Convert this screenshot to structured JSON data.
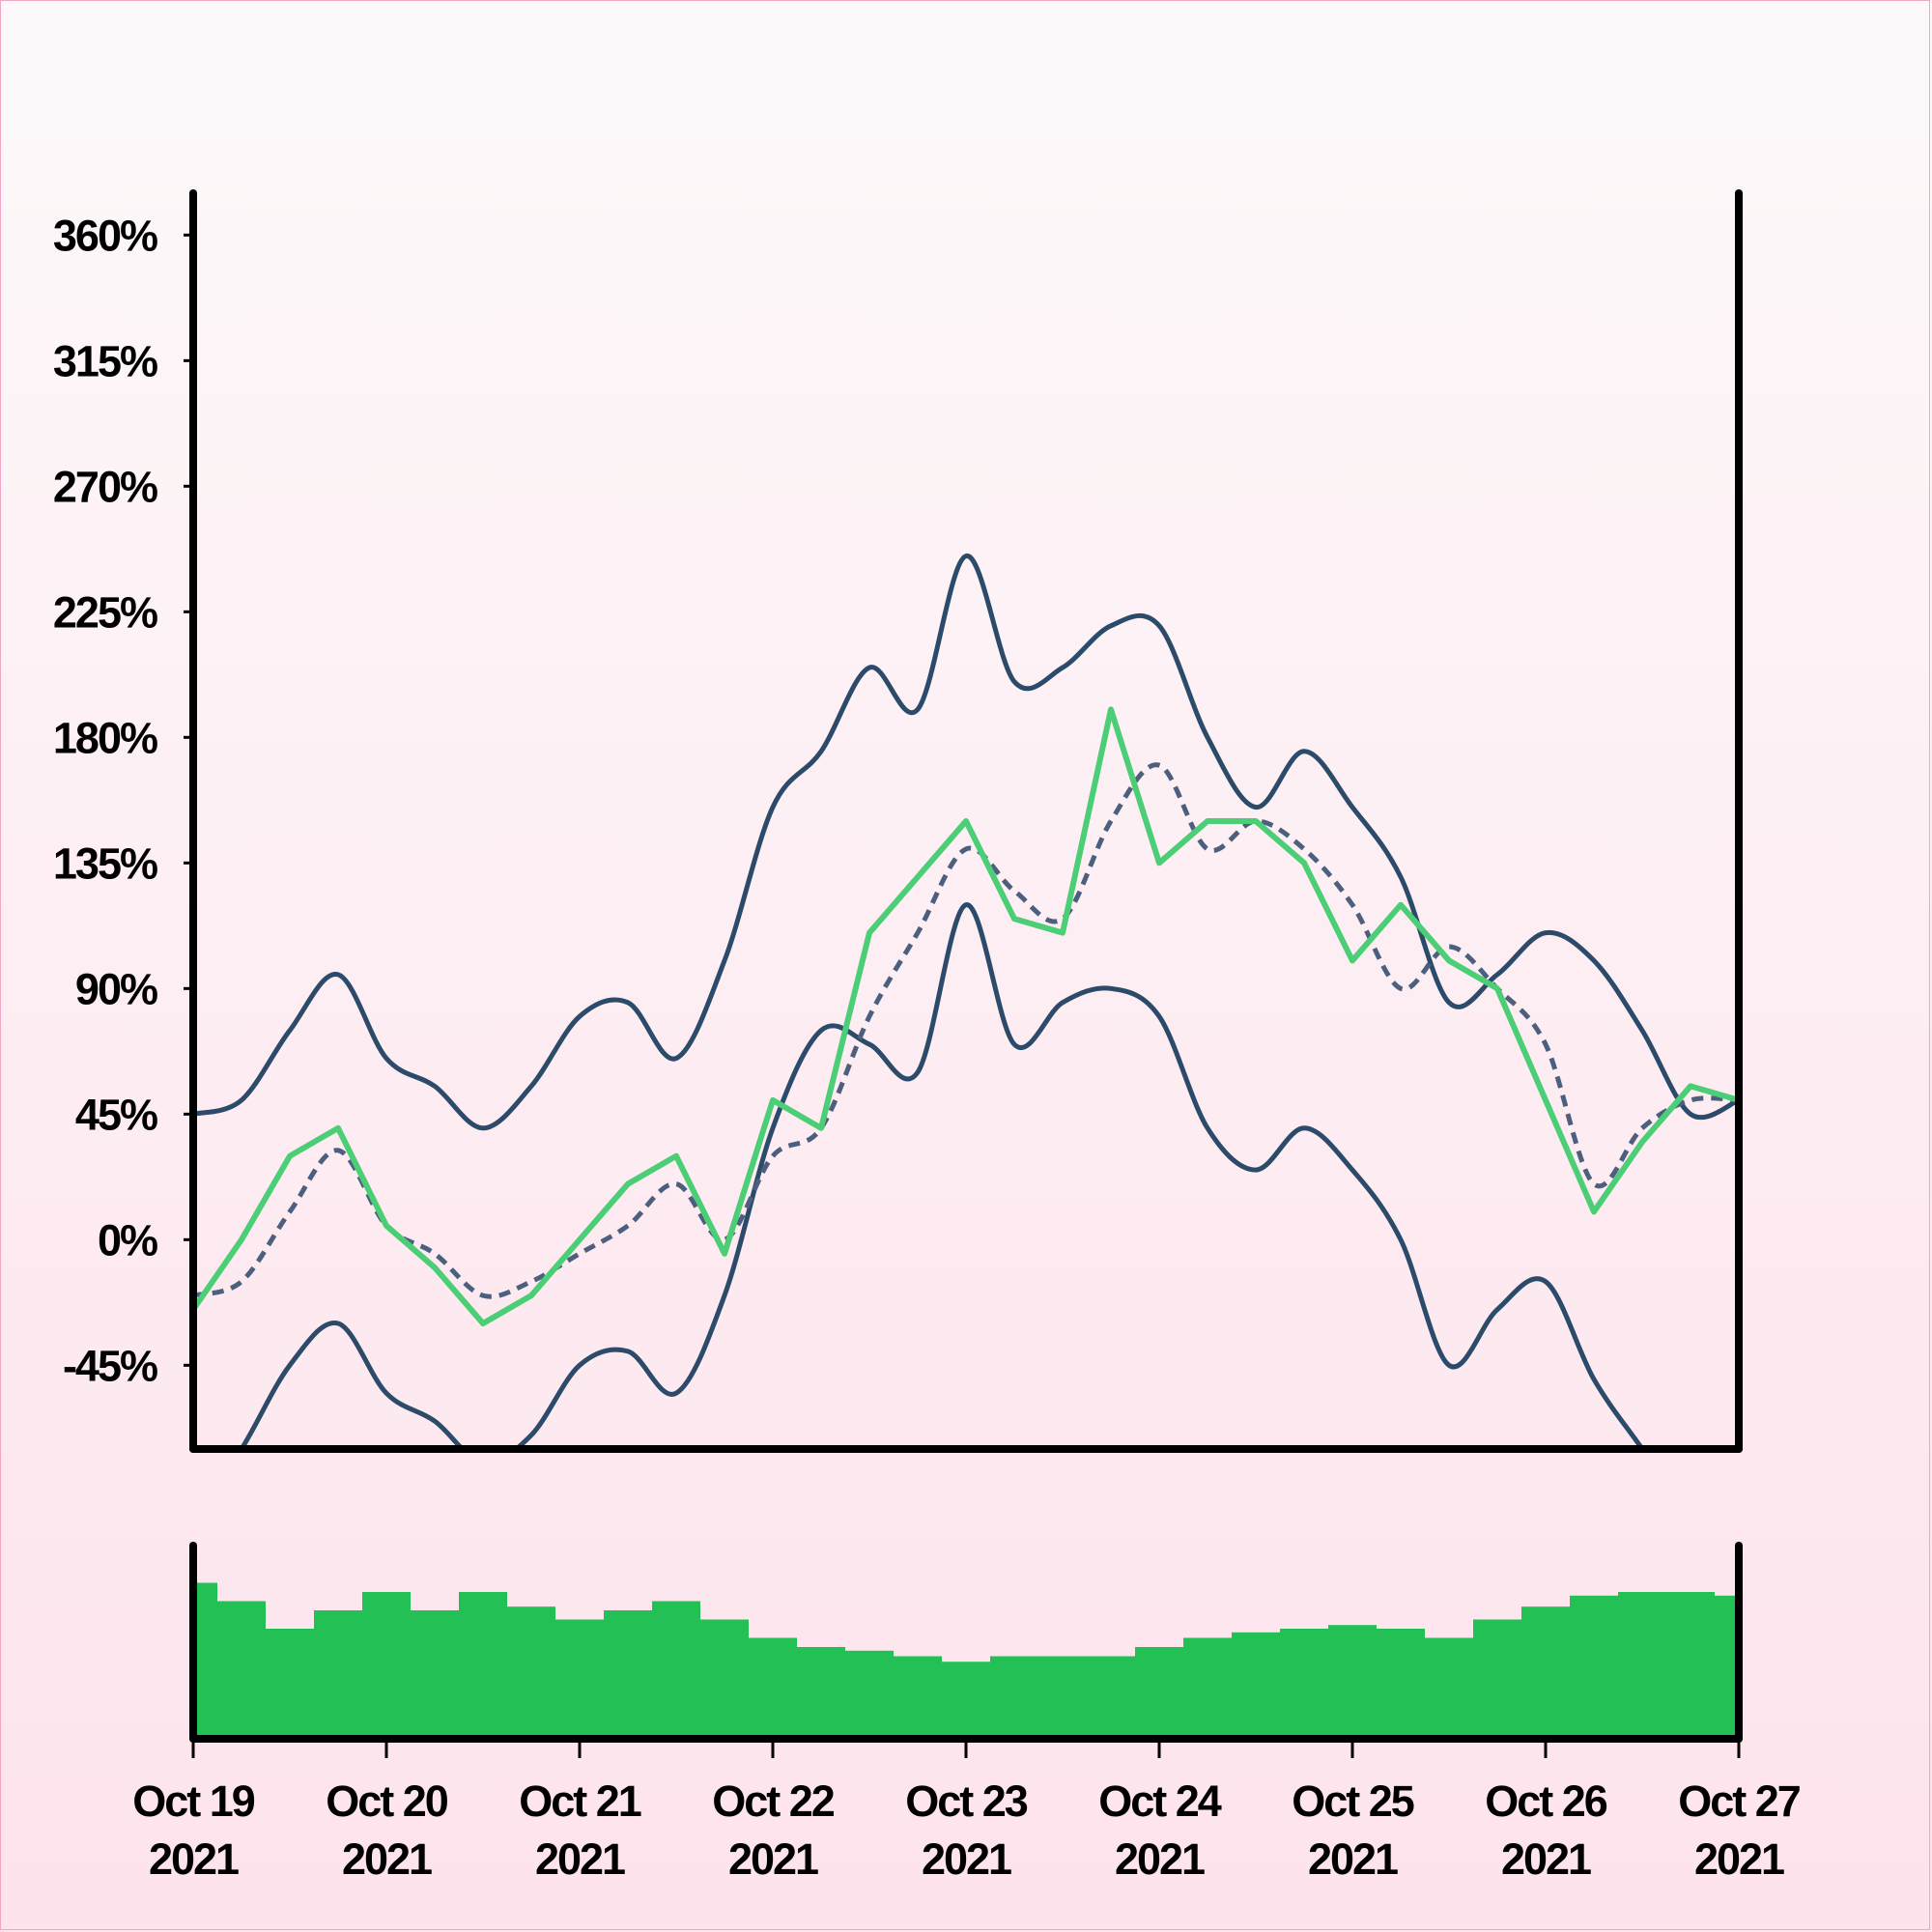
{
  "colors": {
    "price": "#4cce76",
    "band": "#2c4a6a",
    "sma": "#4d5f7f",
    "volume": "#22c055",
    "axis": "#000000",
    "background_top": "#fdf9fa",
    "background_bottom": "#fde3ec"
  },
  "chart_data": {
    "type": "line",
    "xlabel": "",
    "ylabel": "",
    "x_ticks": [
      {
        "date": "2021-10-19",
        "line1": "Oct 19",
        "line2": "2021"
      },
      {
        "date": "2021-10-20",
        "line1": "Oct 20",
        "line2": "2021"
      },
      {
        "date": "2021-10-21",
        "line1": "Oct 21",
        "line2": "2021"
      },
      {
        "date": "2021-10-22",
        "line1": "Oct 22",
        "line2": "2021"
      },
      {
        "date": "2021-10-23",
        "line1": "Oct 23",
        "line2": "2021"
      },
      {
        "date": "2021-10-24",
        "line1": "Oct 24",
        "line2": "2021"
      },
      {
        "date": "2021-10-25",
        "line1": "Oct 25",
        "line2": "2021"
      },
      {
        "date": "2021-10-26",
        "line1": "Oct 26",
        "line2": "2021"
      },
      {
        "date": "2021-10-27",
        "line1": "Oct 27",
        "line2": "2021"
      }
    ],
    "y_ticks": [
      "-45%",
      "0%",
      "45%",
      "90%",
      "135%",
      "180%",
      "225%",
      "270%",
      "315%",
      "360%"
    ],
    "y_tick_values": [
      -45,
      0,
      45,
      90,
      135,
      180,
      225,
      270,
      315,
      360
    ],
    "ylim": [
      -75,
      375
    ],
    "xlim": [
      "2021-10-19",
      "2021-10-27"
    ],
    "grid": false,
    "legend": "none",
    "series_price": {
      "style": "solid green, step-like",
      "x": [
        "2021-10-19 00:00",
        "2021-10-19 06:00",
        "2021-10-19 12:00",
        "2021-10-19 18:00",
        "2021-10-20 00:00",
        "2021-10-20 06:00",
        "2021-10-20 12:00",
        "2021-10-20 18:00",
        "2021-10-21 00:00",
        "2021-10-21 06:00",
        "2021-10-21 12:00",
        "2021-10-21 18:00",
        "2021-10-22 00:00",
        "2021-10-22 06:00",
        "2021-10-22 12:00",
        "2021-10-22 18:00",
        "2021-10-23 00:00",
        "2021-10-23 06:00",
        "2021-10-23 12:00",
        "2021-10-23 18:00",
        "2021-10-24 00:00",
        "2021-10-24 06:00",
        "2021-10-24 12:00",
        "2021-10-24 18:00",
        "2021-10-25 00:00",
        "2021-10-25 06:00",
        "2021-10-25 12:00",
        "2021-10-25 18:00",
        "2021-10-26 00:00",
        "2021-10-26 06:00",
        "2021-10-26 12:00",
        "2021-10-26 18:00",
        "2021-10-27 00:00"
      ],
      "y": [
        -25,
        0,
        30,
        40,
        5,
        -10,
        -30,
        -20,
        0,
        20,
        30,
        -5,
        50,
        40,
        110,
        130,
        150,
        115,
        110,
        190,
        135,
        150,
        150,
        135,
        100,
        120,
        100,
        90,
        50,
        10,
        35,
        55,
        50
      ]
    },
    "series_sma": {
      "style": "dashed slate, moving average",
      "x": [
        "2021-10-19 00:00",
        "2021-10-19 06:00",
        "2021-10-19 12:00",
        "2021-10-19 18:00",
        "2021-10-20 00:00",
        "2021-10-20 06:00",
        "2021-10-20 12:00",
        "2021-10-20 18:00",
        "2021-10-21 00:00",
        "2021-10-21 06:00",
        "2021-10-21 12:00",
        "2021-10-21 18:00",
        "2021-10-22 00:00",
        "2021-10-22 06:00",
        "2021-10-22 12:00",
        "2021-10-22 18:00",
        "2021-10-23 00:00",
        "2021-10-23 06:00",
        "2021-10-23 12:00",
        "2021-10-23 18:00",
        "2021-10-24 00:00",
        "2021-10-24 06:00",
        "2021-10-24 12:00",
        "2021-10-24 18:00",
        "2021-10-25 00:00",
        "2021-10-25 06:00",
        "2021-10-25 12:00",
        "2021-10-25 18:00",
        "2021-10-26 00:00",
        "2021-10-26 06:00",
        "2021-10-26 12:00",
        "2021-10-26 18:00",
        "2021-10-27 00:00"
      ],
      "y": [
        -20,
        -15,
        10,
        32,
        5,
        -5,
        -20,
        -15,
        -5,
        5,
        20,
        0,
        30,
        40,
        80,
        110,
        140,
        125,
        115,
        150,
        170,
        140,
        150,
        140,
        120,
        90,
        105,
        90,
        70,
        20,
        40,
        50,
        50
      ]
    },
    "series_upper_band": {
      "style": "solid dark slate",
      "x": [
        "2021-10-19 00:00",
        "2021-10-19 06:00",
        "2021-10-19 12:00",
        "2021-10-19 18:00",
        "2021-10-20 00:00",
        "2021-10-20 06:00",
        "2021-10-20 12:00",
        "2021-10-20 18:00",
        "2021-10-21 00:00",
        "2021-10-21 06:00",
        "2021-10-21 12:00",
        "2021-10-21 18:00",
        "2021-10-22 00:00",
        "2021-10-22 06:00",
        "2021-10-22 12:00",
        "2021-10-22 18:00",
        "2021-10-23 00:00",
        "2021-10-23 06:00",
        "2021-10-23 12:00",
        "2021-10-23 18:00",
        "2021-10-24 00:00",
        "2021-10-24 06:00",
        "2021-10-24 12:00",
        "2021-10-24 18:00",
        "2021-10-25 00:00",
        "2021-10-25 06:00",
        "2021-10-25 12:00",
        "2021-10-25 18:00",
        "2021-10-26 00:00",
        "2021-10-26 06:00",
        "2021-10-26 12:00",
        "2021-10-26 18:00",
        "2021-10-27 00:00"
      ],
      "y": [
        45,
        50,
        75,
        95,
        65,
        55,
        40,
        55,
        80,
        85,
        65,
        100,
        155,
        175,
        205,
        190,
        245,
        200,
        205,
        220,
        220,
        180,
        155,
        175,
        155,
        130,
        85,
        95,
        110,
        100,
        75,
        45,
        50
      ]
    },
    "series_lower_band": {
      "style": "solid dark slate",
      "x": [
        "2021-10-19 00:00",
        "2021-10-19 06:00",
        "2021-10-19 12:00",
        "2021-10-19 18:00",
        "2021-10-20 00:00",
        "2021-10-20 06:00",
        "2021-10-20 12:00",
        "2021-10-20 18:00",
        "2021-10-21 00:00",
        "2021-10-21 06:00",
        "2021-10-21 12:00",
        "2021-10-21 18:00",
        "2021-10-22 00:00",
        "2021-10-22 06:00",
        "2021-10-22 12:00",
        "2021-10-22 18:00",
        "2021-10-23 00:00",
        "2021-10-23 06:00",
        "2021-10-23 12:00",
        "2021-10-23 18:00",
        "2021-10-24 00:00",
        "2021-10-24 06:00",
        "2021-10-24 12:00",
        "2021-10-24 18:00",
        "2021-10-25 00:00",
        "2021-10-25 06:00",
        "2021-10-25 12:00",
        "2021-10-25 18:00",
        "2021-10-26 00:00",
        "2021-10-26 06:00",
        "2021-10-26 12:00",
        "2021-10-26 18:00",
        "2021-10-27 00:00"
      ],
      "y": [
        -100,
        -75,
        -45,
        -30,
        -55,
        -65,
        -80,
        -70,
        -45,
        -40,
        -55,
        -20,
        40,
        75,
        70,
        60,
        120,
        70,
        85,
        90,
        80,
        40,
        25,
        40,
        25,
        0,
        -45,
        -25,
        -15,
        -50,
        -75,
        -100,
        -75
      ]
    },
    "volume_panel": {
      "type": "bar",
      "style": "green bars, relative height 0-1",
      "x": [
        "2021-10-19 00:00",
        "2021-10-19 06:00",
        "2021-10-19 12:00",
        "2021-10-19 18:00",
        "2021-10-20 00:00",
        "2021-10-20 06:00",
        "2021-10-20 12:00",
        "2021-10-20 18:00",
        "2021-10-21 00:00",
        "2021-10-21 06:00",
        "2021-10-21 12:00",
        "2021-10-21 18:00",
        "2021-10-22 00:00",
        "2021-10-22 06:00",
        "2021-10-22 12:00",
        "2021-10-22 18:00",
        "2021-10-23 00:00",
        "2021-10-23 06:00",
        "2021-10-23 12:00",
        "2021-10-23 18:00",
        "2021-10-24 00:00",
        "2021-10-24 06:00",
        "2021-10-24 12:00",
        "2021-10-24 18:00",
        "2021-10-25 00:00",
        "2021-10-25 06:00",
        "2021-10-25 12:00",
        "2021-10-25 18:00",
        "2021-10-26 00:00",
        "2021-10-26 06:00",
        "2021-10-26 12:00",
        "2021-10-26 18:00",
        "2021-10-27 00:00"
      ],
      "values": [
        0.85,
        0.75,
        0.6,
        0.7,
        0.8,
        0.7,
        0.8,
        0.72,
        0.65,
        0.7,
        0.75,
        0.65,
        0.55,
        0.5,
        0.48,
        0.45,
        0.42,
        0.45,
        0.45,
        0.45,
        0.5,
        0.55,
        0.58,
        0.6,
        0.62,
        0.6,
        0.55,
        0.65,
        0.72,
        0.78,
        0.8,
        0.8,
        0.78
      ]
    }
  }
}
